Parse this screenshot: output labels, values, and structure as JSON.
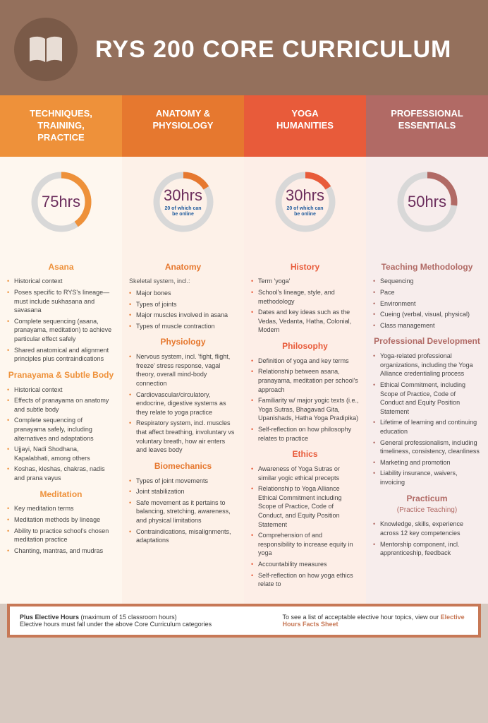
{
  "title": "RYS 200 CORE CURRICULUM",
  "columns": [
    {
      "header": "TECHNIQUES,\nTRAINING,\nPRACTICE",
      "hours": "75hrs",
      "online": "",
      "percent": 0.405,
      "color": "#ee913a"
    },
    {
      "header": "ANATOMY &\nPHYSIOLOGY",
      "hours": "30hrs",
      "online": "20 of which can\nbe online",
      "percent": 0.162,
      "color": "#e6782f"
    },
    {
      "header": "YOGA\nHUMANITIES",
      "hours": "30hrs",
      "online": "20 of which can\nbe online",
      "percent": 0.162,
      "color": "#e85b3a"
    },
    {
      "header": "PROFESSIONAL\nESSENTIALS",
      "hours": "50hrs",
      "online": "",
      "percent": 0.27,
      "color": "#b16a65"
    }
  ],
  "col1": {
    "s1": {
      "h": "Asana",
      "items": [
        "Historical context",
        "Poses specific to RYS's lineage—must include sukhasana and savasana",
        "Complete sequencing (asana, pranayama, meditation) to achieve particular effect safely",
        "Shared anatomical and alignment principles plus contraindications"
      ]
    },
    "s2": {
      "h": "Pranayama & Subtle Body",
      "items": [
        "Historical context",
        "Effects of pranayama on anatomy and subtle body",
        "Complete sequencing of pranayama safely, including alternatives and adaptations",
        "Ujjayi, Nadi Shodhana, Kapalabhati, among others",
        "Koshas, kleshas, chakras, nadis and prana vayus"
      ]
    },
    "s3": {
      "h": "Meditation",
      "items": [
        "Key meditation terms",
        "Meditation methods by lineage",
        "Ability to practice school's chosen meditation practice",
        "Chanting, mantras, and mudras"
      ]
    }
  },
  "col2": {
    "s1": {
      "h": "Anatomy",
      "sub": "Skeletal system, incl.:",
      "items": [
        "Major bones",
        "Types of joints",
        "Major muscles involved in asana",
        "Types of muscle contraction"
      ]
    },
    "s2": {
      "h": "Physiology",
      "items": [
        "Nervous system, incl. 'fight, flight, freeze' stress response, vagal theory, overall mind-body connection",
        "Cardiovascular/circulatory, endocrine, digestive systems as they relate to yoga practice",
        "Respiratory system, incl. muscles that affect breathing, involuntary vs voluntary breath, how air enters and leaves body"
      ]
    },
    "s3": {
      "h": "Biomechanics",
      "items": [
        "Types of joint movements",
        "Joint stabilization",
        "Safe movement as it pertains to balancing, stretching, awareness, and physical limitations",
        "Contraindications, misalignments, adaptations"
      ]
    }
  },
  "col3": {
    "s1": {
      "h": "History",
      "items": [
        "Term 'yoga'",
        "School's lineage, style, and methodology",
        "Dates and key ideas such as the Vedas, Vedanta, Hatha, Colonial, Modern"
      ]
    },
    "s2": {
      "h": "Philosophy",
      "items": [
        "Definition of yoga and key terms",
        "Relationship between asana, pranayama, meditation per school's approach",
        "Familiarity w/ major yogic texts (i.e., Yoga Sutras, Bhagavad Gita, Upanishads, Hatha Yoga Pradipika)",
        "Self-reflection on how philosophy relates to practice"
      ]
    },
    "s3": {
      "h": "Ethics",
      "items": [
        "Awareness of Yoga Sutras or similar yogic ethical precepts",
        "Relationship to Yoga Alliance Ethical Commitment including Scope of Practice, Code of Conduct, and Equity Position Statement",
        "Comprehension of and responsibility to increase equity in yoga",
        "Accountability measures",
        "Self-reflection on how yoga ethics relate to"
      ]
    }
  },
  "col4": {
    "s1": {
      "h": "Teaching Methodology",
      "items": [
        "Sequencing",
        "Pace",
        "Environment",
        "Cueing (verbal, visual, physical)",
        "Class management"
      ]
    },
    "s2": {
      "h": "Professional Development",
      "items": [
        "Yoga-related professional organizations, including the Yoga Alliance credentialing process",
        "Ethical Commitment, including Scope of Practice, Code of Conduct and Equity Position Statement",
        "Lifetime of learning and continuing education",
        "General professionalism, including timeliness, consistency, cleanliness",
        "Marketing and promotion",
        "Liability insurance, waivers, invoicing"
      ]
    },
    "s3": {
      "h": "Practicum",
      "sub": "(Practice Teaching)",
      "items": [
        "Knowledge, skills, experience across 12 key competencies",
        "Mentorship component, incl. apprenticeship, feedback"
      ]
    }
  },
  "footer": {
    "left_bold": "Plus Elective Hours",
    "left_rest": " (maximum of 15 classroom hours)\nElective hours must fall under the above Core Curriculum categories",
    "right_pre": "To see a list of acceptable elective hour topics, view our ",
    "right_link": "Elective Hours Facts Sheet"
  }
}
